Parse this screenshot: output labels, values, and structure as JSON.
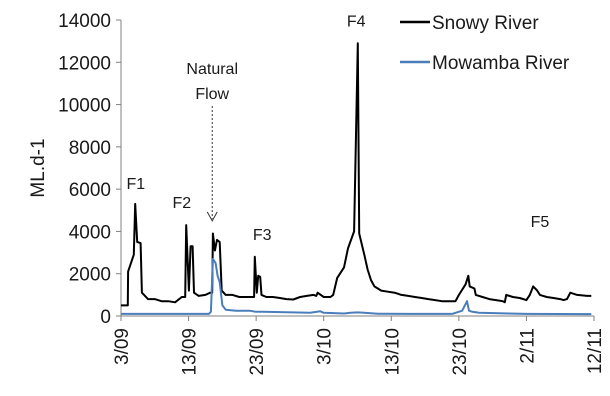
{
  "chart_data": {
    "type": "line",
    "title": "",
    "xlabel": "",
    "ylabel": "ML.d-1",
    "ylim": [
      0,
      14000
    ],
    "yticks": [
      0,
      2000,
      4000,
      6000,
      8000,
      10000,
      12000,
      14000
    ],
    "xticks": [
      "3/09",
      "13/09",
      "23/09",
      "3/10",
      "13/10",
      "23/10",
      "2/11",
      "12/11"
    ],
    "x_unit": "day index from first tick (3/09 = 0)",
    "xlim": [
      0,
      70
    ],
    "grid": false,
    "legend_position": "top-right",
    "series": [
      {
        "name": "Snowy River",
        "color": "#000000",
        "points": [
          [
            0,
            500
          ],
          [
            1,
            500
          ],
          [
            1.05,
            2100
          ],
          [
            1.9,
            2900
          ],
          [
            2.1,
            5300
          ],
          [
            2.4,
            3500
          ],
          [
            2.9,
            3450
          ],
          [
            3.1,
            1100
          ],
          [
            4,
            800
          ],
          [
            5,
            800
          ],
          [
            6,
            700
          ],
          [
            7,
            700
          ],
          [
            8,
            650
          ],
          [
            9,
            900
          ],
          [
            9.5,
            900
          ],
          [
            9.65,
            4300
          ],
          [
            10.05,
            1200
          ],
          [
            10.3,
            3300
          ],
          [
            10.6,
            3300
          ],
          [
            10.8,
            1100
          ],
          [
            11.5,
            950
          ],
          [
            12.5,
            1000
          ],
          [
            13.2,
            1100
          ],
          [
            13.5,
            1100
          ],
          [
            13.6,
            3900
          ],
          [
            13.9,
            3100
          ],
          [
            14.2,
            3600
          ],
          [
            14.6,
            3500
          ],
          [
            14.9,
            1200
          ],
          [
            15.5,
            1000
          ],
          [
            16.5,
            1000
          ],
          [
            17.5,
            900
          ],
          [
            18.5,
            900
          ],
          [
            19.7,
            900
          ],
          [
            19.8,
            2800
          ],
          [
            20.1,
            1100
          ],
          [
            20.3,
            1900
          ],
          [
            20.6,
            1850
          ],
          [
            20.8,
            1000
          ],
          [
            21.5,
            900
          ],
          [
            22.5,
            900
          ],
          [
            23.5,
            850
          ],
          [
            24.5,
            800
          ],
          [
            25.5,
            780
          ],
          [
            26.5,
            900
          ],
          [
            27.5,
            950
          ],
          [
            28.5,
            1000
          ],
          [
            28.9,
            950
          ],
          [
            29.1,
            1100
          ],
          [
            30,
            900
          ],
          [
            31,
            900
          ],
          [
            31.4,
            1000
          ],
          [
            32,
            1800
          ],
          [
            33,
            2300
          ],
          [
            33.6,
            3200
          ],
          [
            34.5,
            4000
          ],
          [
            35.05,
            12900
          ],
          [
            35.25,
            3900
          ],
          [
            36,
            2900
          ],
          [
            36.5,
            2200
          ],
          [
            37,
            1700
          ],
          [
            37.5,
            1400
          ],
          [
            38,
            1300
          ],
          [
            38.5,
            1200
          ],
          [
            39.5,
            1150
          ],
          [
            40.5,
            1100
          ],
          [
            41.5,
            1000
          ],
          [
            42.5,
            950
          ],
          [
            43.5,
            900
          ],
          [
            44.5,
            850
          ],
          [
            45.5,
            800
          ],
          [
            46.5,
            750
          ],
          [
            47.5,
            700
          ],
          [
            48.5,
            700
          ],
          [
            49.5,
            700
          ],
          [
            50,
            1000
          ],
          [
            51,
            1500
          ],
          [
            51.4,
            1900
          ],
          [
            51.6,
            1400
          ],
          [
            52.3,
            1300
          ],
          [
            52.5,
            1000
          ],
          [
            53.5,
            900
          ],
          [
            54.5,
            800
          ],
          [
            55.5,
            750
          ],
          [
            56.5,
            700
          ],
          [
            56.8,
            650
          ],
          [
            57,
            1000
          ],
          [
            58,
            900
          ],
          [
            59,
            850
          ],
          [
            60,
            750
          ],
          [
            60.5,
            1000
          ],
          [
            61,
            1400
          ],
          [
            61.6,
            1200
          ],
          [
            62,
            1000
          ],
          [
            63,
            900
          ],
          [
            64,
            850
          ],
          [
            65,
            800
          ],
          [
            65.5,
            750
          ],
          [
            66,
            800
          ],
          [
            66.5,
            1100
          ],
          [
            67.5,
            1000
          ],
          [
            69,
            950
          ],
          [
            69.6,
            950
          ]
        ]
      },
      {
        "name": "Mowamba River",
        "color": "#4a7ebb",
        "points": [
          [
            0,
            100
          ],
          [
            13,
            100
          ],
          [
            13.3,
            200
          ],
          [
            13.6,
            2700
          ],
          [
            14,
            2500
          ],
          [
            14.3,
            1900
          ],
          [
            14.6,
            1600
          ],
          [
            15,
            500
          ],
          [
            15.5,
            300
          ],
          [
            17,
            250
          ],
          [
            19,
            250
          ],
          [
            20,
            200
          ],
          [
            21,
            200
          ],
          [
            28,
            150
          ],
          [
            29,
            200
          ],
          [
            29.5,
            220
          ],
          [
            30,
            150
          ],
          [
            33,
            120
          ],
          [
            34,
            150
          ],
          [
            35,
            170
          ],
          [
            36,
            150
          ],
          [
            38,
            110
          ],
          [
            43,
            100
          ],
          [
            49,
            100
          ],
          [
            50.5,
            250
          ],
          [
            51.2,
            700
          ],
          [
            51.5,
            250
          ],
          [
            52,
            200
          ],
          [
            53,
            150
          ],
          [
            60,
            100
          ],
          [
            69.6,
            90
          ]
        ]
      }
    ],
    "annotations": [
      {
        "text": "F1",
        "x": 2.2,
        "y": 6000
      },
      {
        "text": "F2",
        "x": 9.0,
        "y": 5100
      },
      {
        "text": "F3",
        "x": 20.9,
        "y": 3600
      },
      {
        "text": "F4",
        "x": 34.8,
        "y": 13700
      },
      {
        "text": "F5",
        "x": 62.0,
        "y": 4200
      }
    ],
    "callout": {
      "line1": "Natural",
      "line2": "Flow",
      "arrow_x": 13.5,
      "arrow_from_y": 10500,
      "arrow_to_y": 4500
    }
  }
}
